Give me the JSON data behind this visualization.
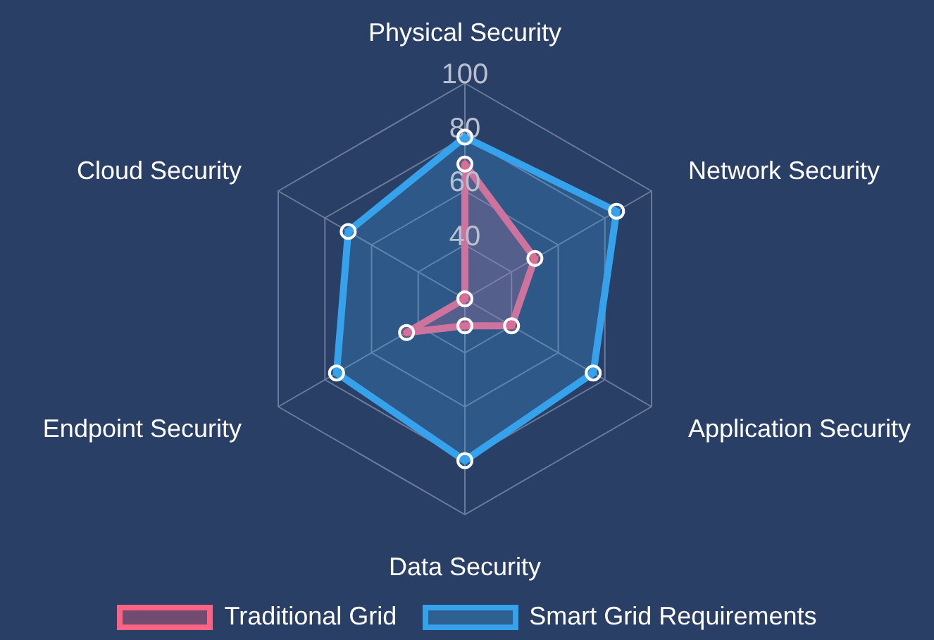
{
  "chart_data": {
    "type": "radar",
    "categories": [
      "Physical Security",
      "Network Security",
      "Application Security",
      "Data Security",
      "Endpoint Security",
      "Cloud Security"
    ],
    "series": [
      {
        "name": "Traditional Grid",
        "color": "#ff6384",
        "values": [
          70,
          50,
          40,
          30,
          45,
          20
        ]
      },
      {
        "name": "Smart Grid Requirements",
        "color": "#36a2eb",
        "values": [
          80,
          85,
          75,
          80,
          75,
          70
        ]
      }
    ],
    "ylim": [
      20,
      100
    ],
    "yticks": [
      40,
      60,
      80,
      100
    ],
    "grid": true,
    "legend": "bottom",
    "marker": "circle"
  }
}
